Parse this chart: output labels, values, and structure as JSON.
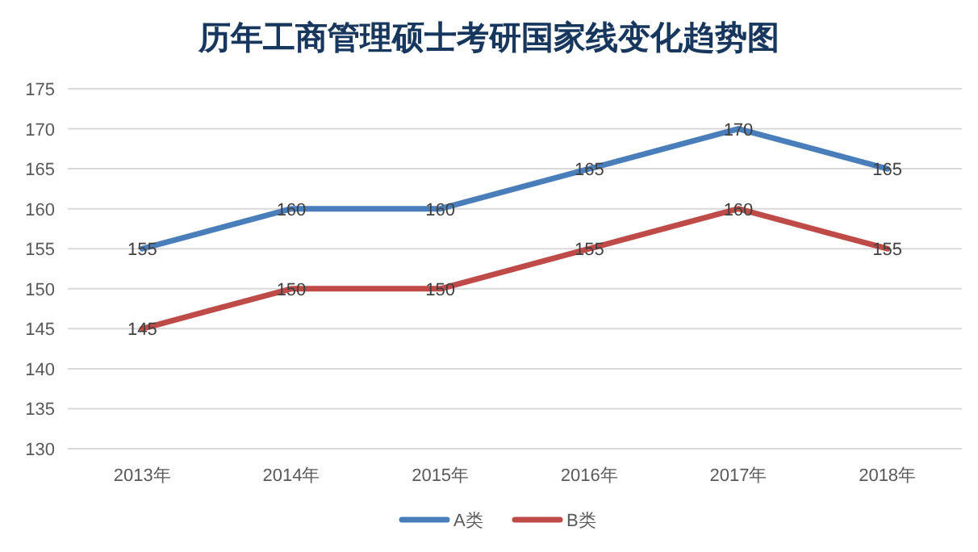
{
  "chart_data": {
    "type": "line",
    "title": "历年工商管理硕士考研国家线变化趋势图",
    "categories": [
      "2013年",
      "2014年",
      "2015年",
      "2016年",
      "2017年",
      "2018年"
    ],
    "series": [
      {
        "name": "A类",
        "color": "#4a7ebb",
        "values": [
          155,
          160,
          160,
          165,
          170,
          165
        ]
      },
      {
        "name": "B类",
        "color": "#be4b48",
        "values": [
          145,
          150,
          150,
          155,
          160,
          155
        ]
      }
    ],
    "ylim": [
      130,
      175
    ],
    "yticks": [
      130,
      135,
      140,
      145,
      150,
      155,
      160,
      165,
      170,
      175
    ],
    "grid": "y",
    "legend": "bottom",
    "data_labels": true,
    "marker": "none",
    "line_style": "solid"
  }
}
